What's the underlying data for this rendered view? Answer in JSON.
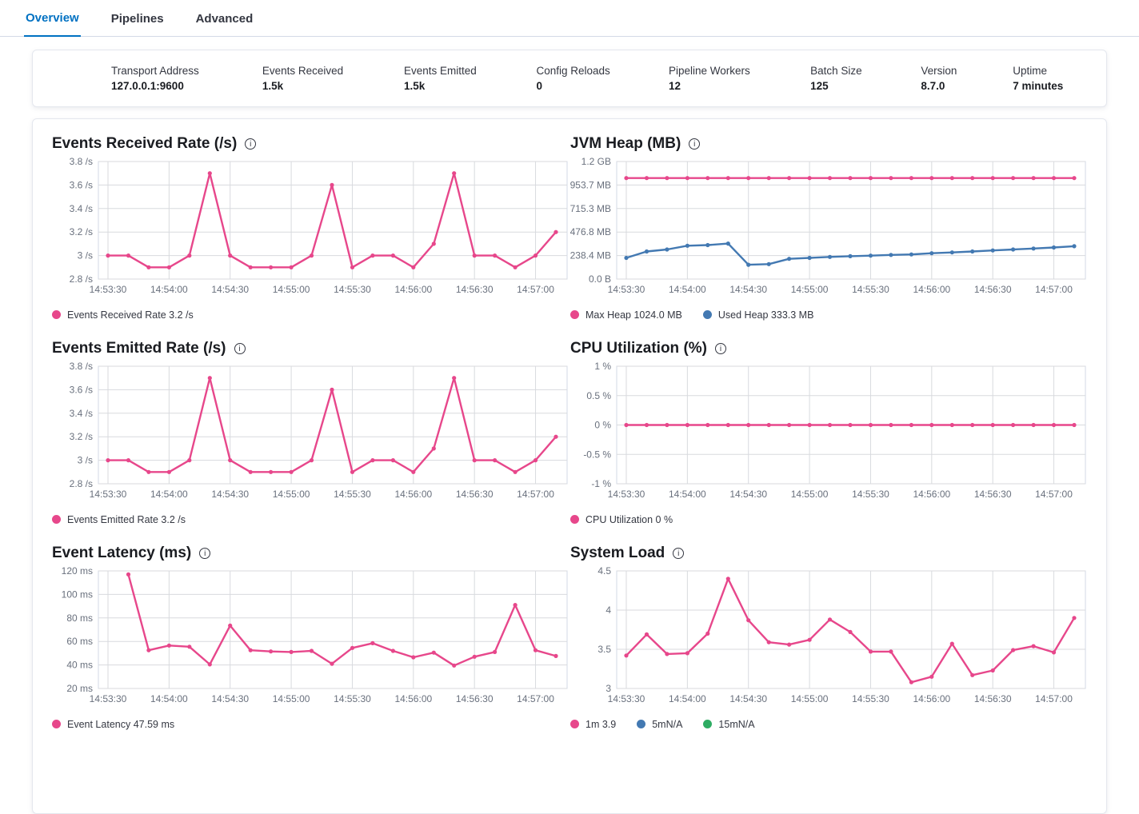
{
  "tabs": {
    "items": [
      {
        "label": "Overview",
        "active": true
      },
      {
        "label": "Pipelines",
        "active": false
      },
      {
        "label": "Advanced",
        "active": false
      }
    ]
  },
  "stats": {
    "items": [
      {
        "label": "Transport Address",
        "value": "127.0.0.1:9600"
      },
      {
        "label": "Events Received",
        "value": "1.5k"
      },
      {
        "label": "Events Emitted",
        "value": "1.5k"
      },
      {
        "label": "Config Reloads",
        "value": "0"
      },
      {
        "label": "Pipeline Workers",
        "value": "12"
      },
      {
        "label": "Batch Size",
        "value": "125"
      },
      {
        "label": "Version",
        "value": "8.7.0"
      },
      {
        "label": "Uptime",
        "value": "7 minutes"
      }
    ]
  },
  "colors": {
    "pink": "#e7478b",
    "blue": "#4379b2",
    "green": "#2eac63",
    "tab_active": "#0071c2",
    "grid": "#d8dade",
    "plot_border": "#d3dae6",
    "axis_text": "#69707d"
  },
  "chart_data": [
    {
      "type": "line",
      "title": "Events Received Rate (/s)",
      "ylim": [
        2.8,
        3.8
      ],
      "yticks": [
        {
          "v": 3.8,
          "label": "3.8 /s"
        },
        {
          "v": 3.6,
          "label": "3.6 /s"
        },
        {
          "v": 3.4,
          "label": "3.4 /s"
        },
        {
          "v": 3.2,
          "label": "3.2 /s"
        },
        {
          "v": 3,
          "label": "3 /s"
        },
        {
          "v": 2.8,
          "label": "2.8 /s"
        }
      ],
      "x": [
        "14:53:30",
        "14:53:40",
        "14:53:50",
        "14:54:00",
        "14:54:10",
        "14:54:20",
        "14:54:30",
        "14:54:40",
        "14:54:50",
        "14:55:00",
        "14:55:10",
        "14:55:20",
        "14:55:30",
        "14:55:40",
        "14:55:50",
        "14:56:00",
        "14:56:10",
        "14:56:20",
        "14:56:30",
        "14:56:40",
        "14:56:50",
        "14:57:00",
        "14:57:10"
      ],
      "xtick_every": 3,
      "series": [
        {
          "name": "Events Received Rate",
          "color": "pink",
          "values": [
            3,
            3,
            2.9,
            2.9,
            3,
            3.7,
            3,
            2.9,
            2.9,
            2.9,
            3,
            3.6,
            2.9,
            3,
            3,
            2.9,
            3.1,
            3.7,
            3,
            3,
            2.9,
            3,
            3.2
          ]
        }
      ],
      "legend": [
        {
          "color": "pink",
          "label": "Events Received Rate 3.2 /s"
        }
      ]
    },
    {
      "type": "line",
      "title": "JVM Heap (MB)",
      "ylim": [
        0,
        1192.1
      ],
      "yticks": [
        {
          "v": 1192.1,
          "label": "1.2 GB"
        },
        {
          "v": 953.7,
          "label": "953.7 MB"
        },
        {
          "v": 715.3,
          "label": "715.3 MB"
        },
        {
          "v": 476.8,
          "label": "476.8 MB"
        },
        {
          "v": 238.4,
          "label": "238.4 MB"
        },
        {
          "v": 0,
          "label": "0.0 B"
        }
      ],
      "x": [
        "14:53:30",
        "14:53:40",
        "14:53:50",
        "14:54:00",
        "14:54:10",
        "14:54:20",
        "14:54:30",
        "14:54:40",
        "14:54:50",
        "14:55:00",
        "14:55:10",
        "14:55:20",
        "14:55:30",
        "14:55:40",
        "14:55:50",
        "14:56:00",
        "14:56:10",
        "14:56:20",
        "14:56:30",
        "14:56:40",
        "14:56:50",
        "14:57:00",
        "14:57:10"
      ],
      "xtick_every": 3,
      "series": [
        {
          "name": "Max Heap",
          "color": "pink",
          "values": [
            1024,
            1024,
            1024,
            1024,
            1024,
            1024,
            1024,
            1024,
            1024,
            1024,
            1024,
            1024,
            1024,
            1024,
            1024,
            1024,
            1024,
            1024,
            1024,
            1024,
            1024,
            1024,
            1024
          ]
        },
        {
          "name": "Used Heap",
          "color": "blue",
          "values": [
            215,
            280,
            300,
            338,
            345,
            360,
            145,
            152,
            205,
            215,
            225,
            232,
            238,
            245,
            250,
            262,
            270,
            280,
            290,
            300,
            310,
            320,
            333.3
          ]
        }
      ],
      "legend": [
        {
          "color": "pink",
          "label": "Max Heap 1024.0 MB"
        },
        {
          "color": "blue",
          "label": "Used Heap 333.3 MB"
        }
      ]
    },
    {
      "type": "line",
      "title": "Events Emitted Rate (/s)",
      "ylim": [
        2.8,
        3.8
      ],
      "yticks": [
        {
          "v": 3.8,
          "label": "3.8 /s"
        },
        {
          "v": 3.6,
          "label": "3.6 /s"
        },
        {
          "v": 3.4,
          "label": "3.4 /s"
        },
        {
          "v": 3.2,
          "label": "3.2 /s"
        },
        {
          "v": 3,
          "label": "3 /s"
        },
        {
          "v": 2.8,
          "label": "2.8 /s"
        }
      ],
      "x": [
        "14:53:30",
        "14:53:40",
        "14:53:50",
        "14:54:00",
        "14:54:10",
        "14:54:20",
        "14:54:30",
        "14:54:40",
        "14:54:50",
        "14:55:00",
        "14:55:10",
        "14:55:20",
        "14:55:30",
        "14:55:40",
        "14:55:50",
        "14:56:00",
        "14:56:10",
        "14:56:20",
        "14:56:30",
        "14:56:40",
        "14:56:50",
        "14:57:00",
        "14:57:10"
      ],
      "xtick_every": 3,
      "series": [
        {
          "name": "Events Emitted Rate",
          "color": "pink",
          "values": [
            3,
            3,
            2.9,
            2.9,
            3,
            3.7,
            3,
            2.9,
            2.9,
            2.9,
            3,
            3.6,
            2.9,
            3,
            3,
            2.9,
            3.1,
            3.7,
            3,
            3,
            2.9,
            3,
            3.2
          ]
        }
      ],
      "legend": [
        {
          "color": "pink",
          "label": "Events Emitted Rate 3.2 /s"
        }
      ]
    },
    {
      "type": "line",
      "title": "CPU Utilization (%)",
      "ylim": [
        -1,
        1
      ],
      "yticks": [
        {
          "v": 1,
          "label": "1 %"
        },
        {
          "v": 0.5,
          "label": "0.5 %"
        },
        {
          "v": 0,
          "label": "0 %"
        },
        {
          "v": -0.5,
          "label": "-0.5 %"
        },
        {
          "v": -1,
          "label": "-1 %"
        }
      ],
      "x": [
        "14:53:30",
        "14:53:40",
        "14:53:50",
        "14:54:00",
        "14:54:10",
        "14:54:20",
        "14:54:30",
        "14:54:40",
        "14:54:50",
        "14:55:00",
        "14:55:10",
        "14:55:20",
        "14:55:30",
        "14:55:40",
        "14:55:50",
        "14:56:00",
        "14:56:10",
        "14:56:20",
        "14:56:30",
        "14:56:40",
        "14:56:50",
        "14:57:00",
        "14:57:10"
      ],
      "xtick_every": 3,
      "series": [
        {
          "name": "CPU Utilization",
          "color": "pink",
          "values": [
            0,
            0,
            0,
            0,
            0,
            0,
            0,
            0,
            0,
            0,
            0,
            0,
            0,
            0,
            0,
            0,
            0,
            0,
            0,
            0,
            0,
            0,
            0
          ]
        }
      ],
      "legend": [
        {
          "color": "pink",
          "label": "CPU Utilization 0 %"
        }
      ]
    },
    {
      "type": "line",
      "title": "Event Latency (ms)",
      "ylim": [
        20,
        120
      ],
      "yticks": [
        {
          "v": 120,
          "label": "120 ms"
        },
        {
          "v": 100,
          "label": "100 ms"
        },
        {
          "v": 80,
          "label": "80 ms"
        },
        {
          "v": 60,
          "label": "60 ms"
        },
        {
          "v": 40,
          "label": "40 ms"
        },
        {
          "v": 20,
          "label": "20 ms"
        }
      ],
      "x": [
        "14:53:30",
        "14:53:40",
        "14:53:50",
        "14:54:00",
        "14:54:10",
        "14:54:20",
        "14:54:30",
        "14:54:40",
        "14:54:50",
        "14:55:00",
        "14:55:10",
        "14:55:20",
        "14:55:30",
        "14:55:40",
        "14:55:50",
        "14:56:00",
        "14:56:10",
        "14:56:20",
        "14:56:30",
        "14:56:40",
        "14:56:50",
        "14:57:00",
        "14:57:10"
      ],
      "xtick_every": 3,
      "series": [
        {
          "name": "Event Latency",
          "color": "pink",
          "values": [
            null,
            117,
            52.5,
            56.5,
            55.5,
            40.5,
            73.5,
            52.5,
            51.5,
            51,
            52,
            41,
            54.5,
            58.5,
            52,
            46.5,
            50.5,
            39.5,
            47,
            51,
            91,
            52.5,
            47.59
          ]
        }
      ],
      "legend": [
        {
          "color": "pink",
          "label": "Event Latency 47.59 ms"
        }
      ]
    },
    {
      "type": "line",
      "title": "System Load",
      "ylim": [
        3,
        4.5
      ],
      "yticks": [
        {
          "v": 4.5,
          "label": "4.5"
        },
        {
          "v": 4,
          "label": "4"
        },
        {
          "v": 3.5,
          "label": "3.5"
        },
        {
          "v": 3,
          "label": "3"
        }
      ],
      "x": [
        "14:53:30",
        "14:53:40",
        "14:53:50",
        "14:54:00",
        "14:54:10",
        "14:54:20",
        "14:54:30",
        "14:54:40",
        "14:54:50",
        "14:55:00",
        "14:55:10",
        "14:55:20",
        "14:55:30",
        "14:55:40",
        "14:55:50",
        "14:56:00",
        "14:56:10",
        "14:56:20",
        "14:56:30",
        "14:56:40",
        "14:56:50",
        "14:57:00",
        "14:57:10"
      ],
      "xtick_every": 3,
      "series": [
        {
          "name": "1m",
          "color": "pink",
          "values": [
            3.42,
            3.69,
            3.44,
            3.45,
            3.7,
            4.4,
            3.87,
            3.59,
            3.56,
            3.62,
            3.88,
            3.72,
            3.47,
            3.47,
            3.08,
            3.15,
            3.57,
            3.17,
            3.23,
            3.49,
            3.54,
            3.46,
            3.9
          ]
        }
      ],
      "legend": [
        {
          "color": "pink",
          "label": "1m 3.9"
        },
        {
          "color": "blue",
          "label": "5mN/A"
        },
        {
          "color": "green",
          "label": "15mN/A"
        }
      ]
    }
  ]
}
